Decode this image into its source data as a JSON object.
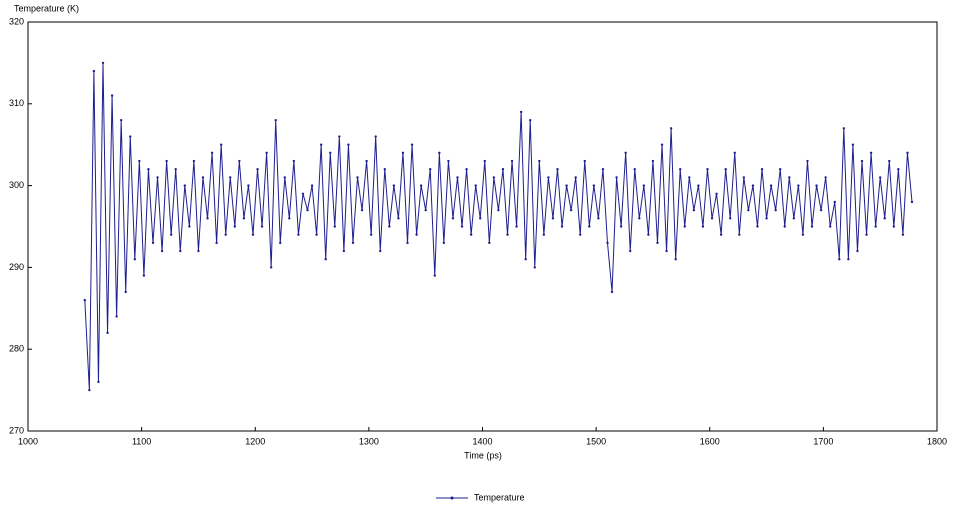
{
  "chart_data": {
    "type": "line",
    "y_label": "Temperature (K)",
    "x_label": "Time (ps)",
    "xlim": [
      1000,
      1800
    ],
    "xticks": [
      1000,
      1100,
      1200,
      1300,
      1400,
      1500,
      1600,
      1700,
      1800
    ],
    "ylim": [
      270,
      320
    ],
    "yticks": [
      270,
      280,
      290,
      300,
      310,
      320
    ],
    "legend": "bottom",
    "x": [
      1050,
      1054,
      1058,
      1062,
      1066,
      1070,
      1074,
      1078,
      1082,
      1086,
      1090,
      1094,
      1098,
      1102,
      1106,
      1110,
      1114,
      1118,
      1122,
      1126,
      1130,
      1134,
      1138,
      1142,
      1146,
      1150,
      1154,
      1158,
      1162,
      1166,
      1170,
      1174,
      1178,
      1182,
      1186,
      1190,
      1194,
      1198,
      1202,
      1206,
      1210,
      1214,
      1218,
      1222,
      1226,
      1230,
      1234,
      1238,
      1242,
      1246,
      1250,
      1254,
      1258,
      1262,
      1266,
      1270,
      1274,
      1278,
      1282,
      1286,
      1290,
      1294,
      1298,
      1302,
      1306,
      1310,
      1314,
      1318,
      1322,
      1326,
      1330,
      1334,
      1338,
      1342,
      1346,
      1350,
      1354,
      1358,
      1362,
      1366,
      1370,
      1374,
      1378,
      1382,
      1386,
      1390,
      1394,
      1398,
      1402,
      1406,
      1410,
      1414,
      1418,
      1422,
      1426,
      1430,
      1434,
      1438,
      1442,
      1446,
      1450,
      1454,
      1458,
      1462,
      1466,
      1470,
      1474,
      1478,
      1482,
      1486,
      1490,
      1494,
      1498,
      1502,
      1506,
      1510,
      1514,
      1518,
      1522,
      1526,
      1530,
      1534,
      1538,
      1542,
      1546,
      1550,
      1554,
      1558,
      1562,
      1566,
      1570,
      1574,
      1578,
      1582,
      1586,
      1590,
      1594,
      1598,
      1602,
      1606,
      1610,
      1614,
      1618,
      1622,
      1626,
      1630,
      1634,
      1638,
      1642,
      1646,
      1650,
      1654,
      1658,
      1662,
      1666,
      1670,
      1674,
      1678,
      1682,
      1686,
      1690,
      1694,
      1698,
      1702,
      1706,
      1710,
      1714,
      1718,
      1722,
      1726,
      1730,
      1734,
      1738,
      1742,
      1746,
      1750,
      1754,
      1758,
      1762,
      1766,
      1770,
      1774,
      1778
    ],
    "series": [
      {
        "name": "Temperature",
        "color": "#1f1f8f",
        "values": [
          286,
          275,
          314,
          276,
          315,
          282,
          311,
          284,
          308,
          287,
          306,
          291,
          303,
          289,
          302,
          293,
          301,
          292,
          303,
          294,
          302,
          292,
          300,
          295,
          303,
          292,
          301,
          296,
          304,
          293,
          305,
          294,
          301,
          295,
          303,
          296,
          300,
          294,
          302,
          295,
          304,
          290,
          308,
          293,
          301,
          296,
          303,
          294,
          299,
          297,
          300,
          294,
          305,
          291,
          304,
          295,
          306,
          292,
          305,
          293,
          301,
          297,
          303,
          294,
          306,
          292,
          302,
          295,
          300,
          296,
          304,
          293,
          305,
          294,
          300,
          297,
          302,
          289,
          304,
          293,
          303,
          296,
          301,
          295,
          302,
          294,
          300,
          296,
          303,
          293,
          301,
          297,
          302,
          294,
          303,
          295,
          309,
          291,
          308,
          290,
          303,
          294,
          301,
          296,
          302,
          295,
          300,
          297,
          301,
          294,
          303,
          295,
          300,
          296,
          302,
          293,
          287,
          301,
          295,
          304,
          292,
          302,
          296,
          300,
          294,
          303,
          293,
          305,
          292,
          307,
          291,
          302,
          295,
          301,
          297,
          300,
          295,
          302,
          296,
          299,
          294,
          302,
          296,
          304,
          294,
          301,
          297,
          300,
          295,
          302,
          296,
          300,
          297,
          302,
          295,
          301,
          296,
          300,
          294,
          303,
          295,
          300,
          297,
          301,
          295,
          298,
          291,
          307,
          291,
          305,
          292,
          303,
          294,
          304,
          295,
          301,
          296,
          303,
          295,
          302,
          294,
          304,
          298
        ]
      }
    ]
  }
}
